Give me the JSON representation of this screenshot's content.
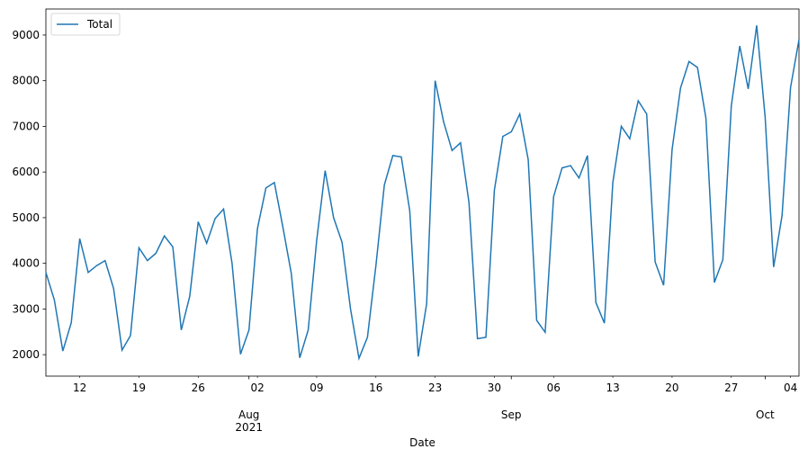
{
  "chart_data": {
    "type": "line",
    "x": [
      "2021-07-08",
      "2021-07-09",
      "2021-07-10",
      "2021-07-11",
      "2021-07-12",
      "2021-07-13",
      "2021-07-14",
      "2021-07-15",
      "2021-07-16",
      "2021-07-17",
      "2021-07-18",
      "2021-07-19",
      "2021-07-20",
      "2021-07-21",
      "2021-07-22",
      "2021-07-23",
      "2021-07-24",
      "2021-07-25",
      "2021-07-26",
      "2021-07-27",
      "2021-07-28",
      "2021-07-29",
      "2021-07-30",
      "2021-07-31",
      "2021-08-01",
      "2021-08-02",
      "2021-08-03",
      "2021-08-04",
      "2021-08-05",
      "2021-08-06",
      "2021-08-07",
      "2021-08-08",
      "2021-08-09",
      "2021-08-10",
      "2021-08-11",
      "2021-08-12",
      "2021-08-13",
      "2021-08-14",
      "2021-08-15",
      "2021-08-16",
      "2021-08-17",
      "2021-08-18",
      "2021-08-19",
      "2021-08-20",
      "2021-08-21",
      "2021-08-22",
      "2021-08-23",
      "2021-08-24",
      "2021-08-25",
      "2021-08-26",
      "2021-08-27",
      "2021-08-28",
      "2021-08-29",
      "2021-08-30",
      "2021-08-31",
      "2021-09-01",
      "2021-09-02",
      "2021-09-03",
      "2021-09-04",
      "2021-09-05",
      "2021-09-06",
      "2021-09-07",
      "2021-09-08",
      "2021-09-09",
      "2021-09-10",
      "2021-09-11",
      "2021-09-12",
      "2021-09-13",
      "2021-09-14",
      "2021-09-15",
      "2021-09-16",
      "2021-09-17",
      "2021-09-18",
      "2021-09-19",
      "2021-09-20",
      "2021-09-21",
      "2021-09-22",
      "2021-09-23",
      "2021-09-24",
      "2021-09-25",
      "2021-09-26",
      "2021-09-27",
      "2021-09-28",
      "2021-09-29",
      "2021-09-30",
      "2021-10-01",
      "2021-10-02",
      "2021-10-03",
      "2021-10-04",
      "2021-10-05"
    ],
    "series": [
      {
        "name": "Total",
        "color": "#1f77b4",
        "values": [
          3800,
          3200,
          2080,
          2700,
          4540,
          3800,
          3950,
          4060,
          3450,
          2100,
          2420,
          4340,
          4060,
          4220,
          4600,
          4360,
          2540,
          3280,
          4910,
          4440,
          4980,
          5190,
          4000,
          2010,
          2540,
          4760,
          5650,
          5770,
          4800,
          3780,
          1930,
          2540,
          4500,
          6030,
          5000,
          4460,
          3000,
          1920,
          2380,
          3950,
          5720,
          6360,
          6330,
          5150,
          1960,
          3120,
          8000,
          7100,
          6470,
          6640,
          5330,
          2350,
          2380,
          5600,
          6780,
          6880,
          7270,
          6270,
          2750,
          2490,
          5460,
          6090,
          6140,
          5870,
          6360,
          3140,
          2690,
          5770,
          7000,
          6730,
          7560,
          7270,
          4030,
          3520,
          6490,
          7840,
          8420,
          8290,
          7180,
          3580,
          4080,
          7450,
          8760,
          7820,
          9210,
          7200,
          3920,
          5050,
          7850,
          8900
        ]
      }
    ],
    "xlim": [
      "2021-07-08",
      "2021-10-05"
    ],
    "xticks": [
      {
        "value": "2021-07-12",
        "label": "12"
      },
      {
        "value": "2021-07-19",
        "label": "19"
      },
      {
        "value": "2021-07-26",
        "label": "26"
      },
      {
        "value": "2021-08-02",
        "label": "02"
      },
      {
        "value": "2021-08-09",
        "label": "09"
      },
      {
        "value": "2021-08-16",
        "label": "16"
      },
      {
        "value": "2021-08-23",
        "label": "23"
      },
      {
        "value": "2021-08-30",
        "label": "30"
      },
      {
        "value": "2021-09-06",
        "label": "06"
      },
      {
        "value": "2021-09-13",
        "label": "13"
      },
      {
        "value": "2021-09-20",
        "label": "20"
      },
      {
        "value": "2021-09-27",
        "label": "27"
      },
      {
        "value": "2021-10-04",
        "label": "04"
      }
    ],
    "xticks_major": [
      {
        "value": "2021-08-01",
        "label": "Aug"
      },
      {
        "value": "2021-09-01",
        "label": "Sep"
      },
      {
        "value": "2021-10-01",
        "label": "Oct"
      }
    ],
    "year_label": "2021",
    "xlabel": "Date",
    "ylim": [
      1530,
      9570
    ],
    "yticks": [
      2000,
      3000,
      4000,
      5000,
      6000,
      7000,
      8000,
      9000
    ],
    "legend": "upper left"
  }
}
